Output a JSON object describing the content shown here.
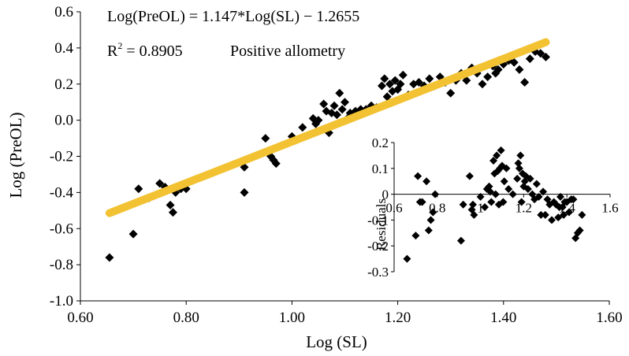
{
  "chart_data": [
    {
      "type": "scatter",
      "title": "",
      "xlabel": "Log  (SL)",
      "ylabel": "Log  (PreOL)",
      "xlim": [
        0.6,
        1.6
      ],
      "ylim": [
        -1.0,
        0.6
      ],
      "x_ticks": [
        "0.60",
        "0.80",
        "1.00",
        "1.20",
        "1.40",
        "1.60"
      ],
      "y_ticks": [
        "-1.0",
        "-0.8",
        "-0.6",
        "-0.4",
        "-0.2",
        "0.0",
        "0.2",
        "0.4",
        "0.6"
      ],
      "grid": false,
      "annotations": {
        "equation": "Log(PreOL) = 1.147*Log(SL) − 1.2655",
        "r2_prefix": "R",
        "r2_sup": "2",
        "r2_value": " = 0.8905",
        "allometry": "Positive allometry"
      },
      "regression": {
        "slope": 1.147,
        "intercept": -1.2655,
        "x_range": [
          0.655,
          1.48
        ],
        "color": "#F2C232"
      },
      "marker_color": "#000000",
      "points": [
        [
          0.655,
          -0.76
        ],
        [
          0.7,
          -0.63
        ],
        [
          0.71,
          -0.38
        ],
        [
          0.72,
          -0.44
        ],
        [
          0.73,
          -0.43
        ],
        [
          0.75,
          -0.35
        ],
        [
          0.76,
          -0.37
        ],
        [
          0.77,
          -0.47
        ],
        [
          0.775,
          -0.51
        ],
        [
          0.78,
          -0.4
        ],
        [
          0.79,
          -0.38
        ],
        [
          0.8,
          -0.38
        ],
        [
          0.91,
          -0.4
        ],
        [
          0.91,
          -0.26
        ],
        [
          0.95,
          -0.1
        ],
        [
          0.96,
          -0.2
        ],
        [
          0.965,
          -0.22
        ],
        [
          0.97,
          -0.24
        ],
        [
          1.0,
          -0.09
        ],
        [
          1.02,
          -0.04
        ],
        [
          1.04,
          0.01
        ],
        [
          1.045,
          -0.02
        ],
        [
          1.05,
          0.0
        ],
        [
          1.06,
          0.09
        ],
        [
          1.065,
          0.05
        ],
        [
          1.07,
          -0.07
        ],
        [
          1.075,
          0.04
        ],
        [
          1.08,
          0.08
        ],
        [
          1.085,
          0.03
        ],
        [
          1.09,
          0.15
        ],
        [
          1.095,
          0.06
        ],
        [
          1.1,
          0.1
        ],
        [
          1.105,
          0.01
        ],
        [
          1.11,
          0.04
        ],
        [
          1.12,
          0.05
        ],
        [
          1.13,
          0.06
        ],
        [
          1.14,
          0.06
        ],
        [
          1.15,
          0.08
        ],
        [
          1.16,
          0.07
        ],
        [
          1.17,
          0.19
        ],
        [
          1.175,
          0.23
        ],
        [
          1.18,
          0.13
        ],
        [
          1.185,
          0.2
        ],
        [
          1.19,
          0.16
        ],
        [
          1.195,
          0.22
        ],
        [
          1.2,
          0.17
        ],
        [
          1.205,
          0.2
        ],
        [
          1.21,
          0.25
        ],
        [
          1.22,
          0.14
        ],
        [
          1.23,
          0.2
        ],
        [
          1.24,
          0.21
        ],
        [
          1.25,
          0.19
        ],
        [
          1.26,
          0.23
        ],
        [
          1.27,
          0.19
        ],
        [
          1.28,
          0.24
        ],
        [
          1.29,
          0.21
        ],
        [
          1.3,
          0.15
        ],
        [
          1.31,
          0.22
        ],
        [
          1.32,
          0.26
        ],
        [
          1.33,
          0.22
        ],
        [
          1.34,
          0.29
        ],
        [
          1.35,
          0.26
        ],
        [
          1.36,
          0.2
        ],
        [
          1.37,
          0.24
        ],
        [
          1.38,
          0.3
        ],
        [
          1.385,
          0.26
        ],
        [
          1.39,
          0.28
        ],
        [
          1.4,
          0.31
        ],
        [
          1.41,
          0.33
        ],
        [
          1.42,
          0.32
        ],
        [
          1.43,
          0.28
        ],
        [
          1.44,
          0.21
        ],
        [
          1.45,
          0.34
        ],
        [
          1.46,
          0.38
        ],
        [
          1.47,
          0.37
        ],
        [
          1.48,
          0.35
        ]
      ]
    },
    {
      "type": "scatter",
      "title": "",
      "xlabel": "",
      "ylabel": "Residuals",
      "xlim": [
        0.6,
        1.6
      ],
      "ylim": [
        -0.3,
        0.2
      ],
      "x_ticks": [
        "0.6",
        "0.8",
        "1",
        "1.2",
        "1.4",
        "1.6"
      ],
      "y_ticks": [
        "0.2",
        "0.1",
        "0",
        "-0.1",
        "-0.2",
        "-0.3"
      ],
      "grid": false,
      "points": [
        [
          0.66,
          -0.25
        ],
        [
          0.7,
          -0.16
        ],
        [
          0.71,
          0.07
        ],
        [
          0.72,
          -0.03
        ],
        [
          0.73,
          -0.03
        ],
        [
          0.75,
          0.05
        ],
        [
          0.76,
          -0.14
        ],
        [
          0.77,
          -0.1
        ],
        [
          0.78,
          -0.07
        ],
        [
          0.79,
          0.0
        ],
        [
          0.91,
          -0.18
        ],
        [
          0.92,
          -0.04
        ],
        [
          0.95,
          0.07
        ],
        [
          0.96,
          -0.06
        ],
        [
          0.965,
          -0.04
        ],
        [
          0.97,
          -0.08
        ],
        [
          1.0,
          -0.01
        ],
        [
          1.02,
          -0.05
        ],
        [
          1.03,
          0.02
        ],
        [
          1.04,
          0.03
        ],
        [
          1.045,
          0.01
        ],
        [
          1.05,
          -0.03
        ],
        [
          1.06,
          0.13
        ],
        [
          1.065,
          0.08
        ],
        [
          1.07,
          0.0
        ],
        [
          1.075,
          0.15
        ],
        [
          1.08,
          0.09
        ],
        [
          1.085,
          -0.04
        ],
        [
          1.09,
          0.1
        ],
        [
          1.095,
          0.17
        ],
        [
          1.1,
          0.11
        ],
        [
          1.105,
          -0.03
        ],
        [
          1.11,
          0.05
        ],
        [
          1.12,
          0.1
        ],
        [
          1.13,
          0.02
        ],
        [
          1.15,
          0.0
        ],
        [
          1.17,
          0.06
        ],
        [
          1.175,
          0.12
        ],
        [
          1.18,
          0.1
        ],
        [
          1.185,
          0.15
        ],
        [
          1.19,
          -0.03
        ],
        [
          1.195,
          0.08
        ],
        [
          1.2,
          0.03
        ],
        [
          1.205,
          0.05
        ],
        [
          1.21,
          0.07
        ],
        [
          1.22,
          0.02
        ],
        [
          1.23,
          0.06
        ],
        [
          1.24,
          0.0
        ],
        [
          1.25,
          -0.02
        ],
        [
          1.26,
          0.04
        ],
        [
          1.27,
          -0.01
        ],
        [
          1.28,
          -0.08
        ],
        [
          1.29,
          0.01
        ],
        [
          1.3,
          -0.08
        ],
        [
          1.31,
          -0.02
        ],
        [
          1.32,
          -0.04
        ],
        [
          1.33,
          -0.1
        ],
        [
          1.34,
          -0.03
        ],
        [
          1.35,
          -0.04
        ],
        [
          1.36,
          -0.09
        ],
        [
          1.365,
          -0.05
        ],
        [
          1.37,
          -0.01
        ],
        [
          1.38,
          -0.05
        ],
        [
          1.385,
          -0.08
        ],
        [
          1.39,
          -0.03
        ],
        [
          1.4,
          -0.03
        ],
        [
          1.41,
          -0.07
        ],
        [
          1.42,
          -0.02
        ],
        [
          1.43,
          -0.02
        ],
        [
          1.44,
          -0.17
        ],
        [
          1.45,
          -0.15
        ],
        [
          1.46,
          -0.14
        ],
        [
          1.47,
          -0.08
        ]
      ]
    }
  ]
}
